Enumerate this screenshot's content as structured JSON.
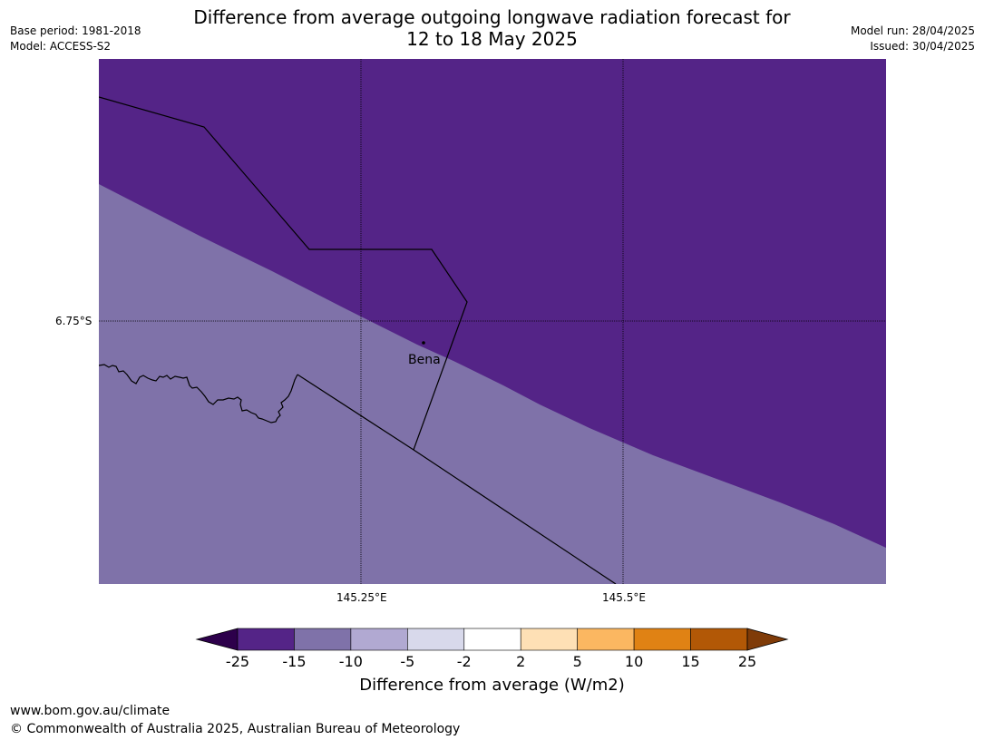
{
  "title": {
    "line1": "Difference from average outgoing longwave radiation forecast for",
    "line2": "12 to 18 May 2025"
  },
  "meta_left": {
    "base_period": "Base period: 1981-2018",
    "model": "Model: ACCESS-S2"
  },
  "meta_right": {
    "model_run": "Model run: 28/04/2025",
    "issued": "Issued: 30/04/2025"
  },
  "map": {
    "latitude_labels": [
      "6.75°S"
    ],
    "longitude_labels": [
      "145.25°E",
      "145.5°E"
    ],
    "places": [
      {
        "name": "Bena"
      }
    ],
    "fill_colors": {
      "minus_15_to_minus_10": "#7f72a9",
      "minus_25_to_minus_15": "#542487"
    }
  },
  "legend": {
    "title": "Difference from average (W/m2)",
    "tick_labels": [
      "-25",
      "-15",
      "-10",
      "-5",
      "-2",
      "2",
      "5",
      "10",
      "15",
      "25"
    ],
    "colors": [
      "#542487",
      "#7f72a9",
      "#b1a9d2",
      "#d8d9eb",
      "#ffffff",
      "#fee0b5",
      "#fbb761",
      "#e08214",
      "#b25806"
    ],
    "under_color": "#2d004b",
    "over_color": "#7f3b08"
  },
  "footer": {
    "url": "www.bom.gov.au/climate",
    "copyright": "© Commonwealth of Australia 2025, Australian Bureau of Meteorology"
  }
}
